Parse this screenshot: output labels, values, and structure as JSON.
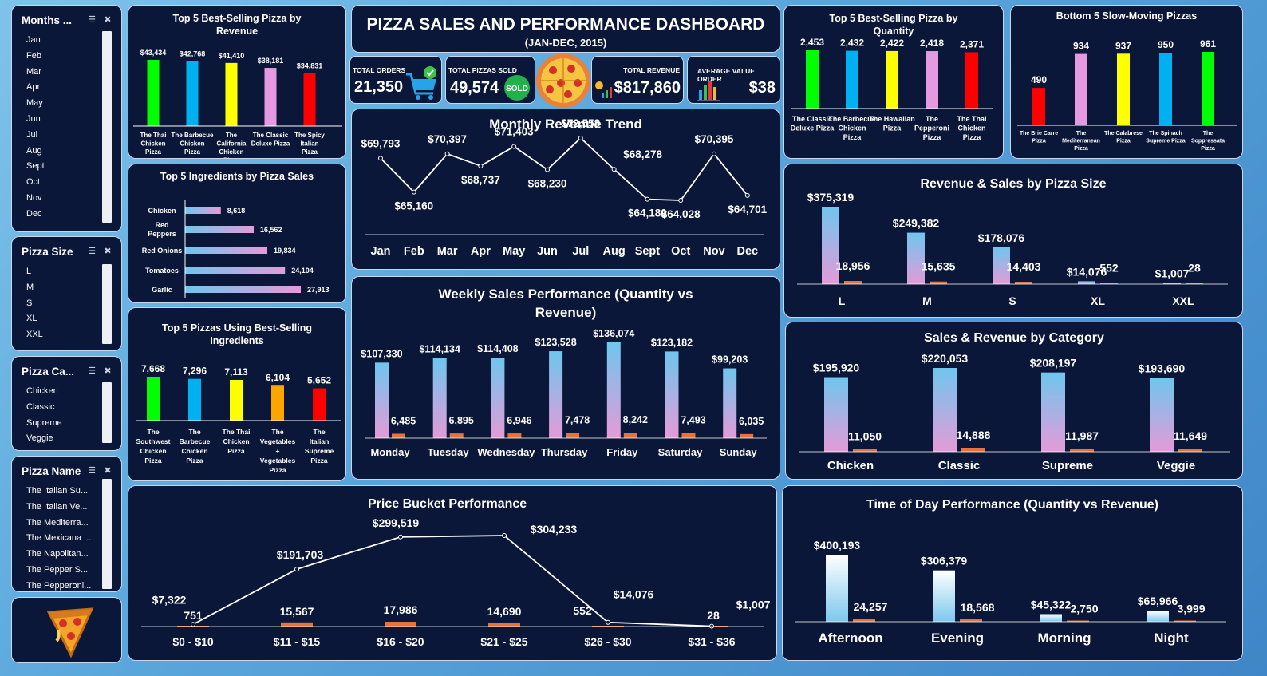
{
  "header": {
    "title": "PIZZA SALES AND PERFORMANCE DASHBOARD",
    "subtitle": "(JAN-DEC, 2015)"
  },
  "kpis": {
    "total_orders": {
      "label": "TOTAL ORDERS",
      "value": "21,350",
      "icon": "shopping-cart-icon"
    },
    "total_pizzas": {
      "label": "TOTAL PIZZAS SOLD",
      "value": "49,574",
      "badge": "SOLD"
    },
    "total_revenue": {
      "label": "TOTAL REVENUE",
      "value": "$817,860",
      "icon": "revenue-chart-icon"
    },
    "avg_order": {
      "label": "AVERAGE VALUE ORDER",
      "value": "$38",
      "icon": "bar-chart-icon"
    }
  },
  "slicers": {
    "months": {
      "title": "Months ...",
      "items": [
        "Jan",
        "Feb",
        "Mar",
        "Apr",
        "May",
        "Jun",
        "Jul",
        "Aug",
        "Sept",
        "Oct",
        "Nov",
        "Dec"
      ]
    },
    "size": {
      "title": "Pizza Size",
      "items": [
        "L",
        "M",
        "S",
        "XL",
        "XXL"
      ]
    },
    "category": {
      "title": "Pizza Ca...",
      "items": [
        "Chicken",
        "Classic",
        "Supreme",
        "Veggie"
      ]
    },
    "name": {
      "title": "Pizza Name",
      "items": [
        "The Italian Su...",
        "The Italian Ve...",
        "The Mediterra...",
        "The Mexicana ...",
        "The Napolitan...",
        "The Pepper S...",
        "The Pepperoni..."
      ]
    }
  },
  "colors": {
    "green": "#00ff00",
    "blue": "#00b0f0",
    "yellow": "#ffff00",
    "pink": "#e599e0",
    "red": "#ff0000",
    "orange": "#ffa500",
    "bar_orange": "#e8733a",
    "panel": "#0b1738"
  },
  "chart_data": [
    {
      "id": "top5_revenue",
      "type": "bar",
      "title": "Top 5 Best-Selling Pizza by Revenue",
      "categories": [
        "The Thai Chicken Pizza",
        "The Barbecue Chicken Pizza",
        "The California Chicken Pizza",
        "The Classic Deluxe Pizza",
        "The Spicy Italian Pizza"
      ],
      "values": [
        43434,
        42768,
        41410,
        38181,
        34831
      ],
      "labels": [
        "$43,434",
        "$42,768",
        "$41,410",
        "$38,181",
        "$34,831"
      ],
      "colors": [
        "#00ff00",
        "#00b0f0",
        "#ffff00",
        "#e599e0",
        "#ff0000"
      ]
    },
    {
      "id": "top5_quantity",
      "type": "bar",
      "title": "Top 5 Best-Selling Pizza by Quantity",
      "categories": [
        "The Classic Deluxe Pizza",
        "The Barbecue Chicken Pizza",
        "The Hawaiian Pizza",
        "The Pepperoni Pizza",
        "The Thai Chicken Pizza"
      ],
      "values": [
        2453,
        2432,
        2422,
        2418,
        2371
      ],
      "labels": [
        "2,453",
        "2,432",
        "2,422",
        "2,418",
        "2,371"
      ],
      "colors": [
        "#00ff00",
        "#00b0f0",
        "#ffff00",
        "#e599e0",
        "#ff0000"
      ]
    },
    {
      "id": "bottom5",
      "type": "bar",
      "title": "Bottom 5 Slow-Moving Pizzas",
      "categories": [
        "The Brie Carre Pizza",
        "The Mediterranean Pizza",
        "The Calabrese Pizza",
        "The Spinach Supreme Pizza",
        "The Soppressata Pizza"
      ],
      "values": [
        490,
        934,
        937,
        950,
        961
      ],
      "labels": [
        "490",
        "934",
        "937",
        "950",
        "961"
      ],
      "colors": [
        "#ff0000",
        "#e599e0",
        "#ffff00",
        "#00b0f0",
        "#00ff00"
      ]
    },
    {
      "id": "ingredients",
      "type": "bar",
      "orientation": "horizontal",
      "title": "Top 5 Ingredients by Pizza Sales",
      "categories": [
        "Chicken",
        "Red Peppers",
        "Red Onions",
        "Tomatoes",
        "Garlic"
      ],
      "values": [
        8618,
        16562,
        19834,
        24104,
        27913
      ],
      "labels": [
        "8,618",
        "16,562",
        "19,834",
        "24,104",
        "27,913"
      ]
    },
    {
      "id": "pizzas_best_ingredients",
      "type": "bar",
      "title": "Top 5 Pizzas Using Best-Selling Ingredients",
      "categories": [
        "The Southwest Chicken Pizza",
        "The Barbecue Chicken Pizza",
        "The Thai Chicken Pizza",
        "The Vegetables + Vegetables Pizza",
        "The Italian Supreme Pizza"
      ],
      "values": [
        7668,
        7296,
        7113,
        6104,
        5652
      ],
      "labels": [
        "7,668",
        "7,296",
        "7,113",
        "6,104",
        "5,652"
      ],
      "colors": [
        "#00ff00",
        "#00b0f0",
        "#ffff00",
        "#ffa500",
        "#ff0000"
      ]
    },
    {
      "id": "monthly",
      "type": "line",
      "title": "Monthly Revenue Trend",
      "categories": [
        "Jan",
        "Feb",
        "Mar",
        "Apr",
        "May",
        "Jun",
        "Jul",
        "Aug",
        "Sept",
        "Oct",
        "Nov",
        "Dec"
      ],
      "values": [
        69793,
        65160,
        70397,
        68737,
        71403,
        68230,
        72558,
        68278,
        64180,
        64028,
        70395,
        64701
      ],
      "labels": [
        "$69,793",
        "$65,160",
        "$70,397",
        "$68,737",
        "$71,403",
        "$68,230",
        "$72,558",
        "$68,278",
        "$64,180",
        "$64,028",
        "$70,395",
        "$64,701"
      ]
    },
    {
      "id": "weekly",
      "type": "bar",
      "title": "Weekly Sales Performance (Quantity vs Revenue)",
      "categories": [
        "Monday",
        "Tuesday",
        "Wednesday",
        "Thursday",
        "Friday",
        "Saturday",
        "Sunday"
      ],
      "series": [
        {
          "values": [
            107330,
            114134,
            114408,
            123528,
            136074,
            123182,
            99203
          ],
          "labels": [
            "$107,330",
            "$114,134",
            "$114,408",
            "$123,528",
            "$136,074",
            "$123,182",
            "$99,203"
          ]
        },
        {
          "values": [
            6485,
            6895,
            6946,
            7478,
            8242,
            7493,
            6035
          ],
          "labels": [
            "6,485",
            "6,895",
            "6,946",
            "7,478",
            "8,242",
            "7,493",
            "6,035"
          ]
        }
      ]
    },
    {
      "id": "size",
      "type": "bar",
      "title": "Revenue & Sales by Pizza Size",
      "categories": [
        "L",
        "M",
        "S",
        "XL",
        "XXL"
      ],
      "series": [
        {
          "values": [
            375319,
            249382,
            178076,
            14076,
            1007
          ],
          "labels": [
            "$375,319",
            "$249,382",
            "$178,076",
            "$14,076",
            "$1,007"
          ]
        },
        {
          "values": [
            18956,
            15635,
            14403,
            552,
            28
          ],
          "labels": [
            "18,956",
            "15,635",
            "14,403",
            "552",
            "28"
          ]
        }
      ]
    },
    {
      "id": "category",
      "type": "bar",
      "title": "Sales & Revenue by Category",
      "categories": [
        "Chicken",
        "Classic",
        "Supreme",
        "Veggie"
      ],
      "series": [
        {
          "values": [
            195920,
            220053,
            208197,
            193690
          ],
          "labels": [
            "$195,920",
            "$220,053",
            "$208,197",
            "$193,690"
          ]
        },
        {
          "values": [
            11050,
            14888,
            11987,
            11649
          ],
          "labels": [
            "11,050",
            "14,888",
            "11,987",
            "11,649"
          ]
        }
      ]
    },
    {
      "id": "price_bucket",
      "type": "line",
      "title": "Price Bucket Performance",
      "categories": [
        "$0 - $10",
        "$11 - $15",
        "$16 - $20",
        "$21 - $25",
        "$26 - $30",
        "$31 - $36"
      ],
      "series": [
        {
          "values": [
            7322,
            191703,
            299519,
            304233,
            14076,
            1007
          ],
          "labels": [
            "$7,322",
            "$191,703",
            "$299,519",
            "$304,233",
            "$14,076",
            "$1,007"
          ]
        },
        {
          "values": [
            751,
            15567,
            17986,
            14690,
            552,
            28
          ],
          "labels": [
            "751",
            "15,567",
            "17,986",
            "14,690",
            "552",
            "28"
          ]
        }
      ]
    },
    {
      "id": "time_of_day",
      "type": "bar",
      "title": "Time of Day Performance (Quantity vs Revenue)",
      "categories": [
        "Afternoon",
        "Evening",
        "Morning",
        "Night"
      ],
      "series": [
        {
          "values": [
            400193,
            306379,
            45322,
            65966
          ],
          "labels": [
            "$400,193",
            "$306,379",
            "$45,322",
            "$65,966"
          ]
        },
        {
          "values": [
            24257,
            18568,
            2750,
            3999
          ],
          "labels": [
            "24,257",
            "18,568",
            "2,750",
            "3,999"
          ]
        }
      ]
    }
  ]
}
